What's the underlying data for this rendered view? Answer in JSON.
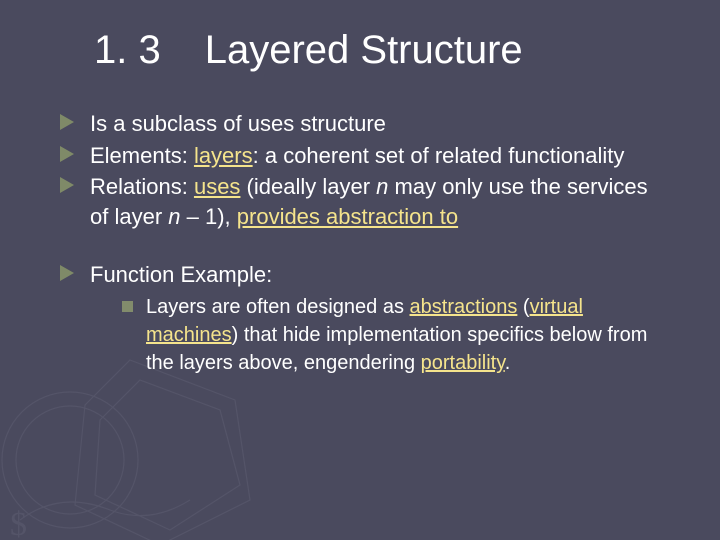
{
  "colors": {
    "background": "#4a4a5e",
    "text": "#ffffff",
    "highlight": "#f5e48c",
    "marker_arrow": "#7f8a68",
    "marker_square": "#828c6c",
    "decoration": "#6b6b80"
  },
  "typography": {
    "title_fontsize": 40,
    "body_fontsize": 22,
    "sub_fontsize": 20,
    "font_family": "Verdana"
  },
  "title": {
    "number": "1. 3",
    "text": "Layered Structure"
  },
  "bullets": [
    {
      "runs": [
        {
          "t": "Is a subclass of uses structure"
        }
      ]
    },
    {
      "runs": [
        {
          "t": "Elements: "
        },
        {
          "t": "layers",
          "hl": true,
          "ul": true
        },
        {
          "t": ": a coherent set of related functionality"
        }
      ]
    },
    {
      "runs": [
        {
          "t": "Relations: "
        },
        {
          "t": "uses",
          "hl": true,
          "ul": true
        },
        {
          "t": " (ideally layer "
        },
        {
          "t": "n",
          "it": true
        },
        {
          "t": " may only use the services of layer "
        },
        {
          "t": "n",
          "it": true
        },
        {
          "t": " – 1), "
        },
        {
          "t": "provides abstraction to",
          "hl": true,
          "ul": true
        }
      ]
    },
    {
      "gap_before": true,
      "runs": [
        {
          "t": "Function Example:"
        }
      ],
      "sub": [
        {
          "runs": [
            {
              "t": "Layers are often designed as "
            },
            {
              "t": "abstractions",
              "hl": true,
              "ul": true
            },
            {
              "t": " ("
            },
            {
              "t": "virtual machines",
              "hl": true,
              "ul": true
            },
            {
              "t": ") that hide implementation specifics below from the layers above, engendering "
            },
            {
              "t": "portability",
              "hl": true,
              "ul": true
            },
            {
              "t": "."
            }
          ]
        }
      ]
    }
  ]
}
